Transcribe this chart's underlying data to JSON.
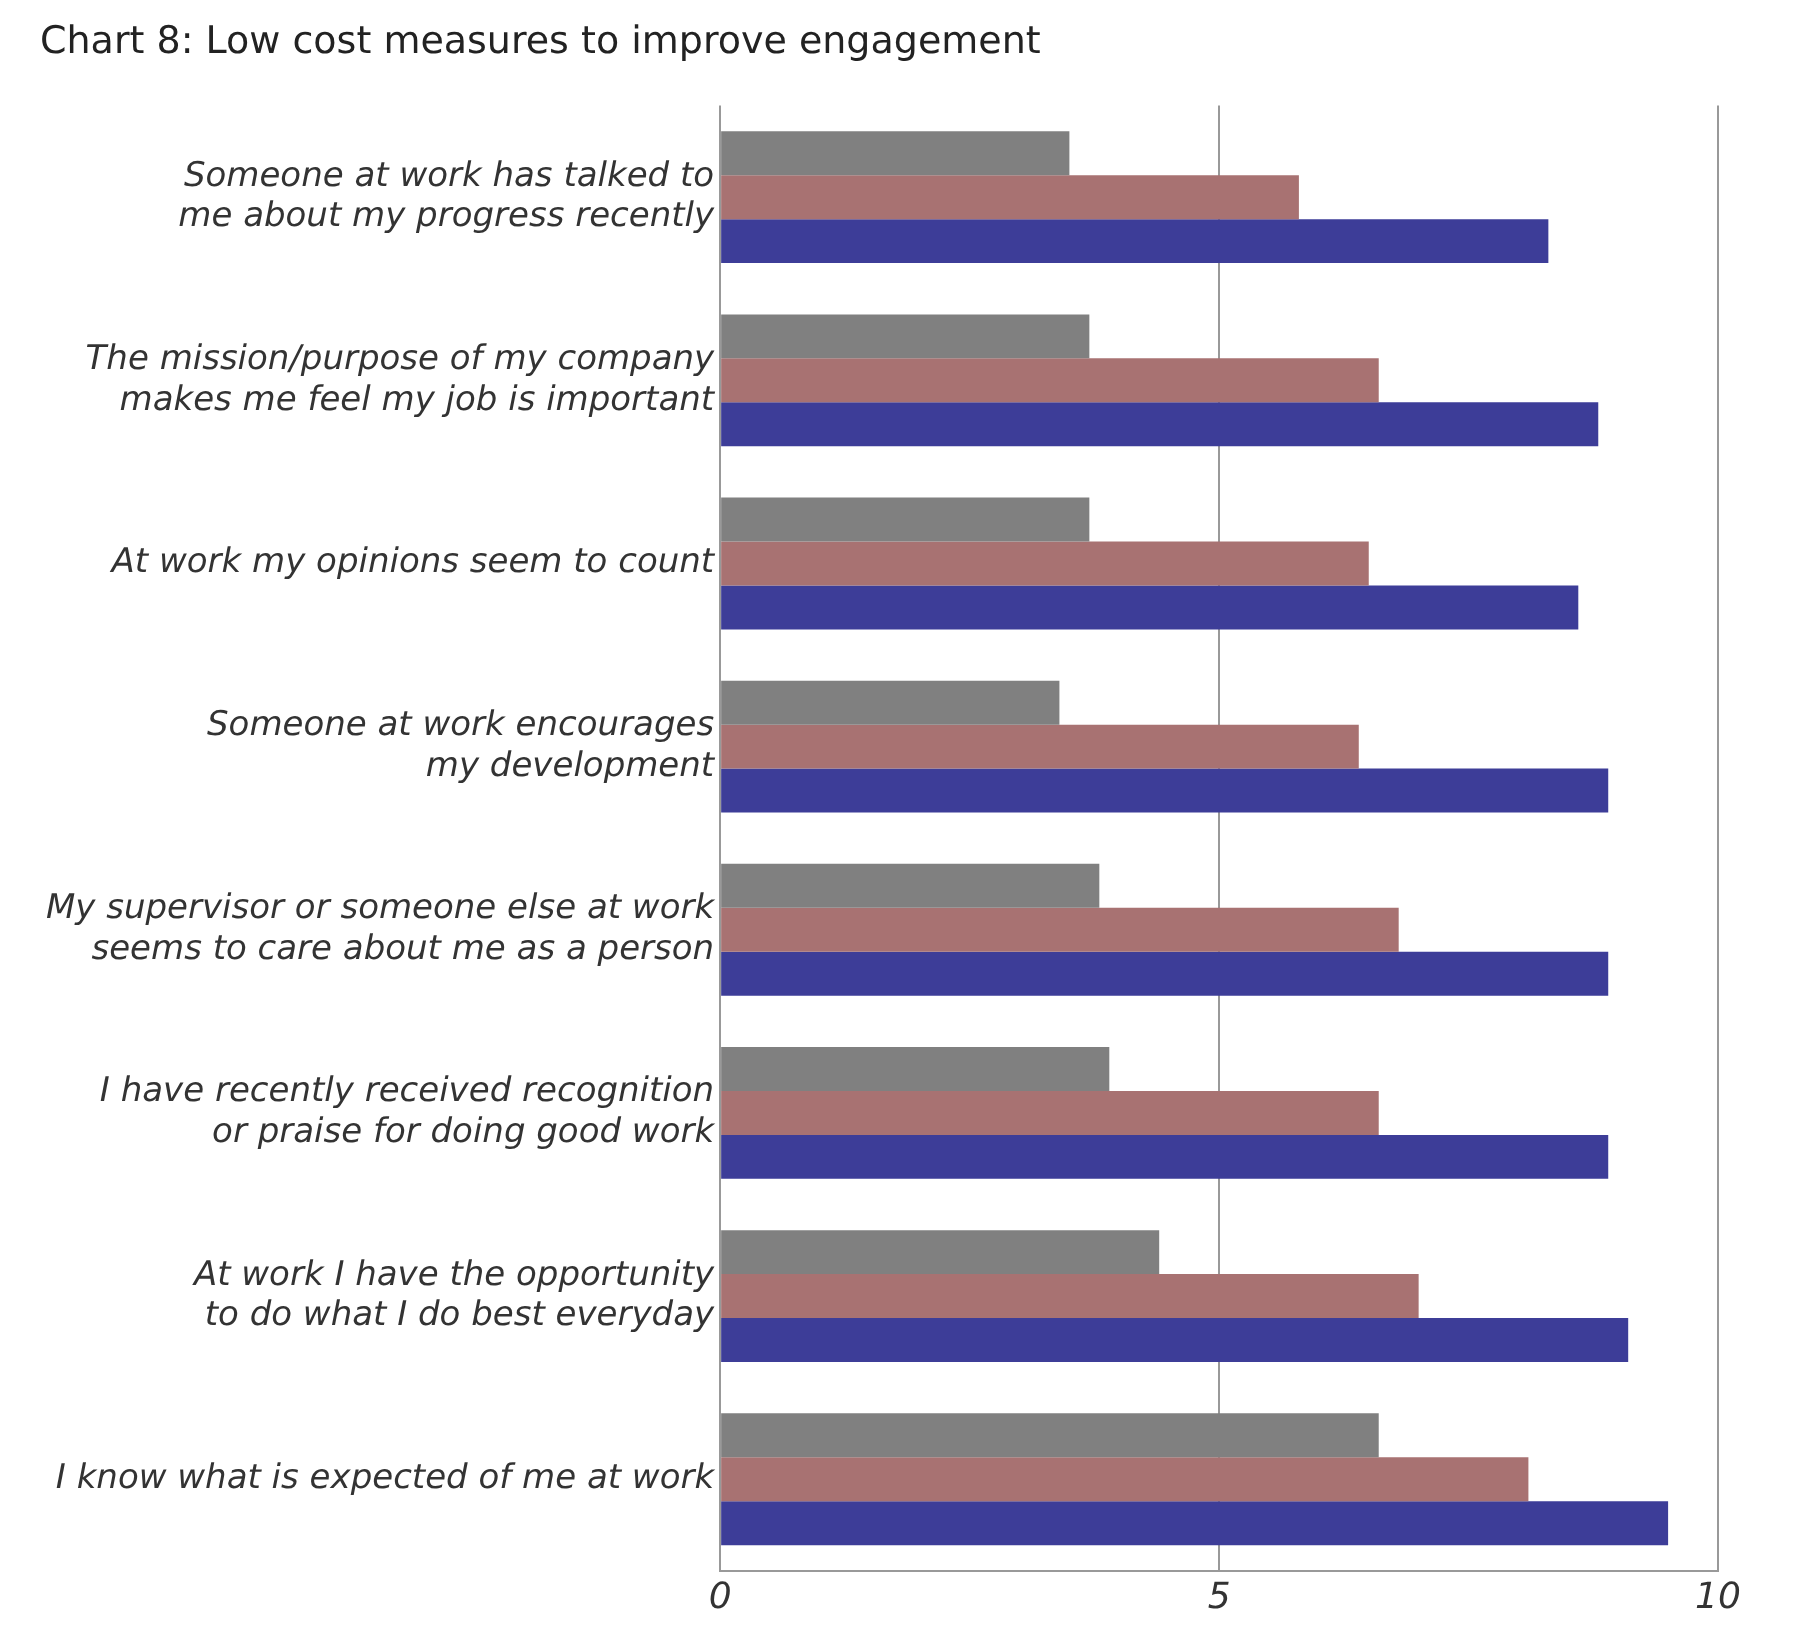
{
  "chart_data": {
    "type": "bar",
    "orientation": "horizontal",
    "title": "Chart 8: Low cost measures to improve engagement",
    "categories": [
      "Someone at work has talked to me about my progress recently",
      "The mission/purpose of my company makes me feel my job is important",
      "At work my opinions seem to count",
      "Someone at work encourages my development",
      "My supervisor or someone else at work seems to care about me as a person",
      "I have recently received recognition or praise for doing good work",
      "At work I have the opportunity to do what I do best everyday",
      "I know what is expected of me at work"
    ],
    "series": [
      {
        "color": "#808080",
        "values": [
          3.5,
          3.7,
          3.7,
          3.4,
          3.8,
          3.9,
          4.4,
          6.6
        ]
      },
      {
        "color": "#a87272",
        "values": [
          5.8,
          6.6,
          6.5,
          6.4,
          6.8,
          6.6,
          7.0,
          8.1
        ]
      },
      {
        "color": "#3d3d98",
        "values": [
          8.3,
          8.8,
          8.6,
          8.9,
          8.9,
          8.9,
          9.1,
          9.5
        ]
      }
    ],
    "xlim": [
      0,
      10
    ],
    "xticks": [
      0,
      5,
      10
    ],
    "grid": "x",
    "legend": false
  }
}
